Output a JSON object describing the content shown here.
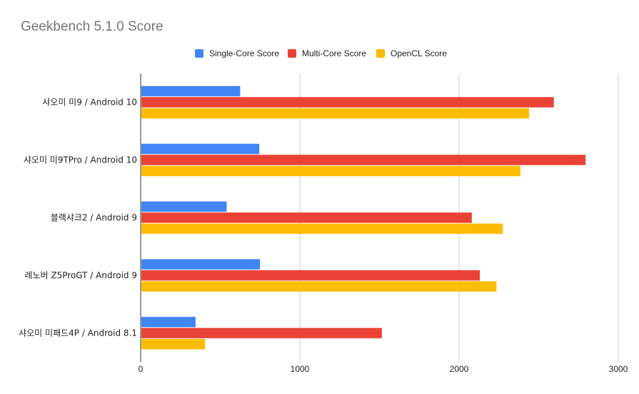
{
  "chart_data": {
    "type": "bar",
    "orientation": "horizontal",
    "title": "Geekbench 5.1.0 Score",
    "categories": [
      "샤오미 미9 / Android 10",
      "샤오미 미9TPro / Android 10",
      "블랙샤크2 / Android 9",
      "레노버 Z5ProGT / Android 9",
      "샤오미 미패드4P / Android 8.1"
    ],
    "series": [
      {
        "name": "Single-Core Score",
        "color": "#4285f4",
        "values": [
          625,
          745,
          540,
          750,
          345
        ]
      },
      {
        "name": "Multi-Core Score",
        "color": "#ea4335",
        "values": [
          2595,
          2795,
          2080,
          2130,
          1515
        ]
      },
      {
        "name": "OpenCL Score",
        "color": "#fbbc04",
        "values": [
          2440,
          2385,
          2275,
          2235,
          405
        ]
      }
    ],
    "xlim": [
      0,
      3000
    ],
    "xticks": [
      "0",
      "1000",
      "2000",
      "3000"
    ],
    "grid": true,
    "legend_position": "top"
  }
}
